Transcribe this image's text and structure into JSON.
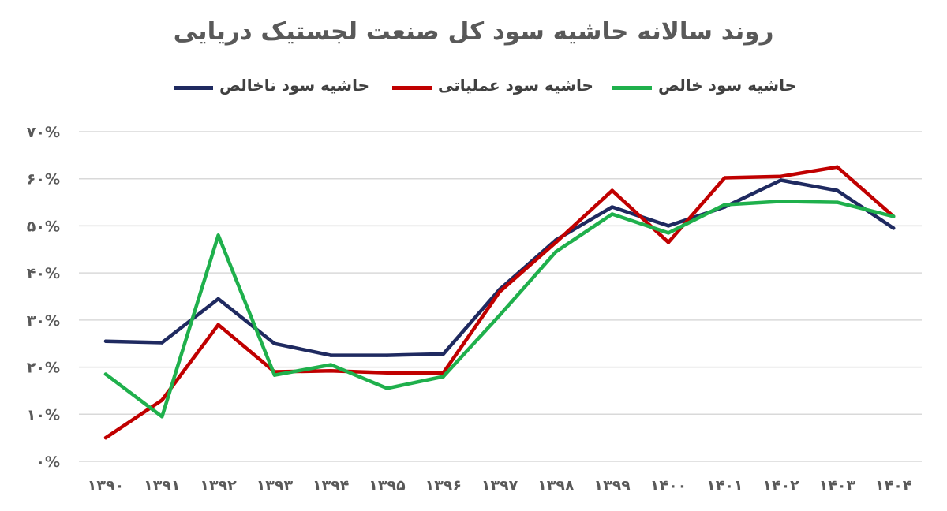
{
  "chart_data": {
    "type": "line",
    "title": "روند سالانه حاشیه سود کل صنعت لجستیک دریایی",
    "xlabel": "",
    "ylabel": "",
    "categories": [
      "۱۳۹۰",
      "۱۳۹۱",
      "۱۳۹۲",
      "۱۳۹۳",
      "۱۳۹۴",
      "۱۳۹۵",
      "۱۳۹۶",
      "۱۳۹۷",
      "۱۳۹۸",
      "۱۳۹۹",
      "۱۴۰۰",
      "۱۴۰۱",
      "۱۴۰۲",
      "۱۴۰۳",
      "۱۴۰۴"
    ],
    "ylim": [
      0,
      70
    ],
    "yticks": [
      0,
      10,
      20,
      30,
      40,
      50,
      60,
      70
    ],
    "ytick_labels": [
      "۰%",
      "۱۰%",
      "۲۰%",
      "۳۰%",
      "۴۰%",
      "۵۰%",
      "۶۰%",
      "۷۰%"
    ],
    "grid": true,
    "legend_position": "top",
    "series": [
      {
        "name": "حاشیه سود ناخالص",
        "color": "#1f2a60",
        "values": [
          25.5,
          25.2,
          34.5,
          25.0,
          22.5,
          22.5,
          22.8,
          36.5,
          47.0,
          54.0,
          50.0,
          54.0,
          59.7,
          57.5,
          49.5
        ]
      },
      {
        "name": "حاشیه سود عملیاتی",
        "color": "#c00000",
        "values": [
          5.0,
          13.0,
          29.0,
          19.0,
          19.2,
          18.8,
          18.8,
          36.0,
          46.5,
          57.5,
          46.5,
          60.2,
          60.5,
          62.5,
          52.0
        ]
      },
      {
        "name": "حاشیه سود خالص",
        "color": "#1fb04c",
        "values": [
          18.5,
          9.5,
          48.0,
          18.3,
          20.5,
          15.5,
          18.0,
          31.0,
          44.5,
          52.5,
          48.5,
          54.5,
          55.2,
          55.0,
          52.0
        ]
      }
    ]
  }
}
